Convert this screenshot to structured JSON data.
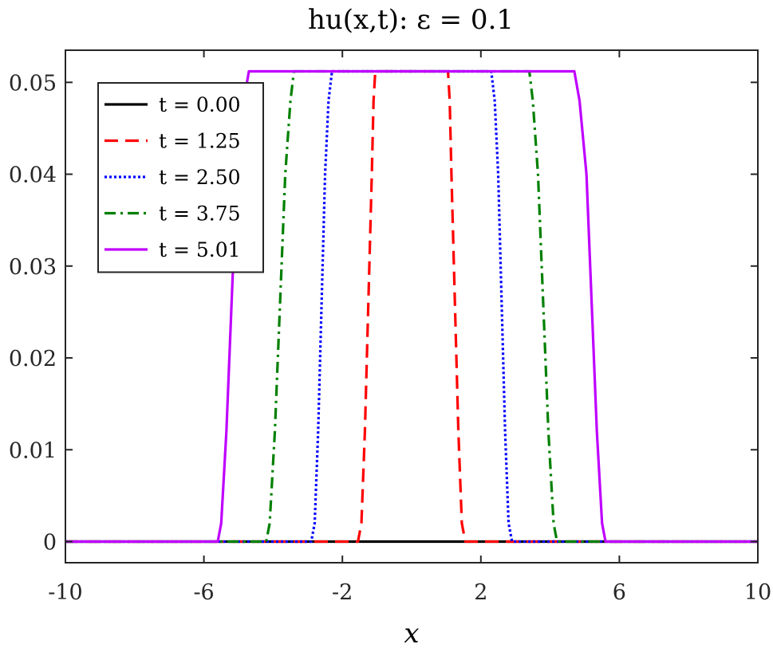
{
  "chart_data": {
    "type": "line",
    "title": "hu(x,t): ε = 0.1",
    "xlabel": "x",
    "ylabel": "",
    "xlim": [
      -10,
      10
    ],
    "ylim": [
      -0.0023,
      0.0535
    ],
    "x_ticks": [
      "-10",
      "-6",
      "-2",
      "2",
      "6",
      "10"
    ],
    "y_ticks": [
      "0",
      "0.01",
      "0.02",
      "0.03",
      "0.04",
      "0.05"
    ],
    "grid": false,
    "legend_position": "top-left",
    "series": [
      {
        "name": "t = 0.00",
        "color": "#000000",
        "style": "solid",
        "x": [
          -10,
          -2.9,
          2.9,
          10
        ],
        "y": [
          0,
          0,
          0,
          0
        ]
      },
      {
        "name": "t = 1.25",
        "color": "#ff0000",
        "style": "dashed",
        "x": [
          -10,
          -1.55,
          -1.45,
          -1.35,
          -1.25,
          -1.15,
          -1.1,
          -1.05,
          1.05,
          1.1,
          1.15,
          1.25,
          1.35,
          1.45,
          1.55,
          10
        ],
        "y": [
          0,
          0,
          0.002,
          0.012,
          0.026,
          0.04,
          0.048,
          0.0512,
          0.0512,
          0.048,
          0.04,
          0.026,
          0.012,
          0.002,
          0,
          0
        ]
      },
      {
        "name": "t = 2.50",
        "color": "#0000ff",
        "style": "dotted",
        "x": [
          -10,
          -2.9,
          -2.8,
          -2.7,
          -2.6,
          -2.5,
          -2.4,
          -2.3,
          2.3,
          2.4,
          2.5,
          2.6,
          2.7,
          2.8,
          2.9,
          10
        ],
        "y": [
          0,
          0,
          0.002,
          0.012,
          0.026,
          0.04,
          0.048,
          0.0512,
          0.0512,
          0.048,
          0.04,
          0.026,
          0.012,
          0.002,
          0,
          0
        ]
      },
      {
        "name": "t = 3.75",
        "color": "#008000",
        "style": "dashdot",
        "x": [
          -10,
          -4.2,
          -4.1,
          -3.95,
          -3.8,
          -3.65,
          -3.5,
          -3.4,
          3.4,
          3.5,
          3.65,
          3.8,
          3.95,
          4.1,
          4.2,
          10
        ],
        "y": [
          0,
          0,
          0.002,
          0.012,
          0.026,
          0.04,
          0.048,
          0.0512,
          0.0512,
          0.048,
          0.04,
          0.026,
          0.012,
          0.002,
          0,
          0
        ]
      },
      {
        "name": "t = 5.01",
        "color": "#bf00ff",
        "style": "solid",
        "x": [
          -10,
          -5.6,
          -5.5,
          -5.35,
          -5.2,
          -5.05,
          -4.85,
          -4.7,
          4.7,
          4.85,
          5.05,
          5.2,
          5.35,
          5.5,
          5.6,
          10
        ],
        "y": [
          0,
          0,
          0.002,
          0.012,
          0.026,
          0.04,
          0.048,
          0.0512,
          0.0512,
          0.048,
          0.04,
          0.026,
          0.012,
          0.002,
          0,
          0
        ]
      }
    ]
  }
}
